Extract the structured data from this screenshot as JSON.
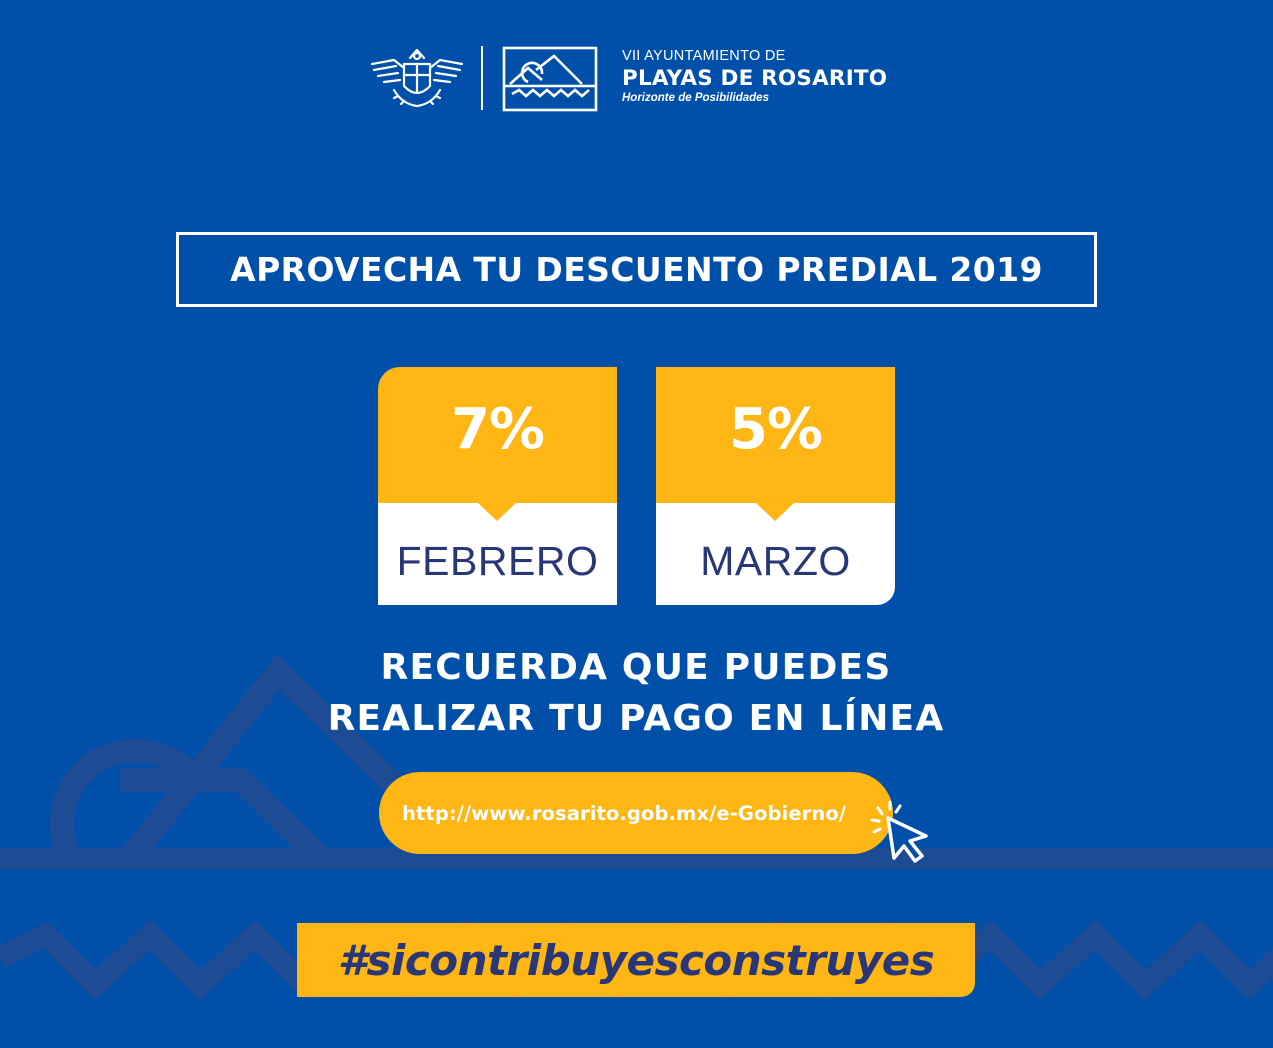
{
  "header": {
    "crest_icon": "state-crest-icon",
    "city_logo_icon": "city-logo-icon",
    "ayuntamiento_line": "VII AYUNTAMIENTO DE",
    "city_name": "PLAYAS DE ROSARITO",
    "slogan": "Horizonte de Posibilidades"
  },
  "headline": "APROVECHA TU DESCUENTO PREDIAL 2019",
  "discounts": [
    {
      "percent": "7%",
      "month": "FEBRERO"
    },
    {
      "percent": "5%",
      "month": "MARZO"
    }
  ],
  "reminder": {
    "line1": "RECUERDA QUE PUEDES",
    "line2": "REALIZAR TU PAGO EN LÍNEA"
  },
  "url": "http://www.rosarito.gob.mx/e-Gobierno/",
  "cursor_icon": "pointer-cursor-icon",
  "hashtag": "#sicontribuyesconstruyes",
  "colors": {
    "background": "#0050aa",
    "accent_yellow": "#fdb614",
    "dark_blue_text": "#293777",
    "white": "#ffffff",
    "background_art": "#1d4e98"
  }
}
